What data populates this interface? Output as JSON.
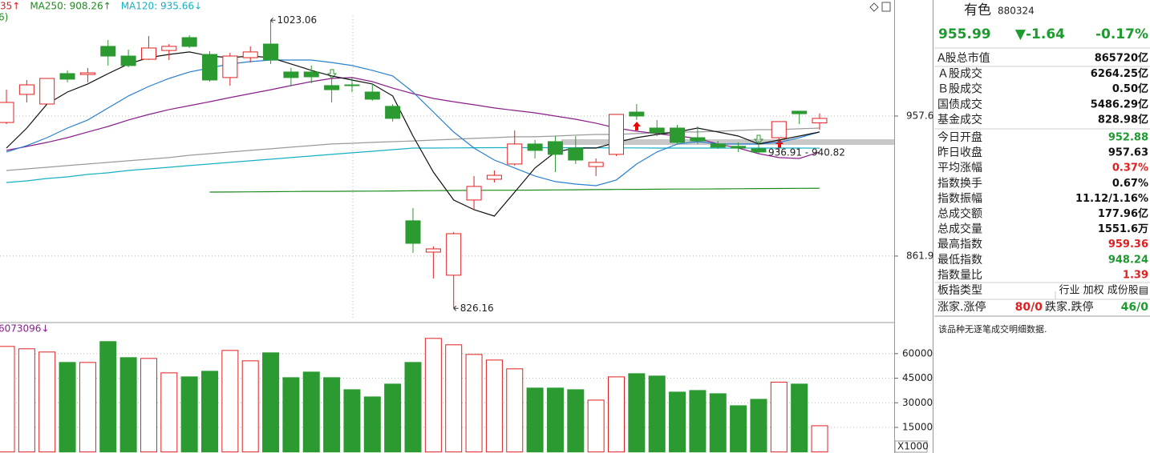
{
  "chart_data": [
    {
      "type": "candlestick",
      "legend": [
        {
          "text": "35↑",
          "color": "#d62020"
        },
        {
          "text": "MA250: 908.26↑",
          "color": "#1e8a1e"
        },
        {
          "text": "MA120: 935.66↓",
          "color": "#16b0c4"
        }
      ],
      "subtitle": "6)",
      "open": [
        953.2,
        972.4,
        965.8,
        986.6,
        986.0,
        1005.2,
        998.6,
        996.4,
        1002.4,
        1011.2,
        999.7,
        983.9,
        997.5,
        1006.8,
        987.7,
        987.7,
        978.4,
        978.9,
        974.0,
        964.2,
        886.0,
        864.6,
        848.8,
        900.2,
        914.4,
        924.8,
        938.5,
        940.1,
        935.7,
        923.1,
        931.4,
        960.3,
        949.4,
        949.4,
        942.8,
        938.5,
        936.9,
        935.2,
        942.8,
        960.9,
        952.88
      ],
      "high": [
        975.6,
        982.2,
        983.3,
        988.8,
        990.4,
        1009.6,
        1003.0,
        1012.3,
        1006.8,
        1012.8,
        1001.9,
        1000.8,
        1005.2,
        1023.06,
        990.4,
        992.1,
        983.9,
        983.9,
        979.5,
        965.8,
        894.7,
        868.5,
        878.3,
        916.6,
        920.4,
        947.8,
        941.2,
        943.9,
        943.9,
        928.6,
        958.7,
        965.8,
        954.9,
        951.6,
        950.5,
        940.6,
        939.6,
        940.6,
        953.8,
        960.9,
        959.36
      ],
      "low": [
        952.1,
        966.9,
        965.8,
        980.6,
        980.6,
        992.1,
        991.0,
        995.9,
        995.9,
        1004.1,
        981.1,
        978.4,
        994.2,
        993.2,
        977.8,
        980.0,
        966.9,
        974.0,
        968.0,
        953.8,
        864.1,
        846.6,
        826.16,
        893.6,
        912.2,
        923.7,
        928.6,
        919.3,
        924.8,
        916.6,
        930.3,
        954.9,
        943.9,
        938.5,
        938.5,
        935.2,
        933.0,
        931.9,
        933.0,
        952.1,
        948.24
      ],
      "close": [
        966.9,
        978.9,
        983.3,
        982.8,
        987.1,
        998.6,
        992.1,
        1004.1,
        1005.2,
        1005.2,
        982.2,
        998.6,
        1001.4,
        995.9,
        983.9,
        984.4,
        975.6,
        978.4,
        969.1,
        956.0,
        870.6,
        866.8,
        877.2,
        909.5,
        917.1,
        938.5,
        934.1,
        931.4,
        927.5,
        925.9,
        958.7,
        957.6,
        946.1,
        939.6,
        940.6,
        936.3,
        935.7,
        933.0,
        953.8,
        959.2,
        955.99
      ],
      "up_color": "#e02020",
      "down_color": "#2b9a31",
      "lines": [
        {
          "color": "#9a9a9a",
          "values": [
            920.4,
            921.5,
            922.6,
            923.7,
            924.8,
            925.9,
            927.0,
            928.1,
            929.2,
            930.8,
            931.9,
            933.0,
            934.1,
            935.2,
            936.3,
            937.4,
            938.5,
            939.0,
            939.6,
            940.1,
            940.6,
            941.2,
            941.7,
            942.3,
            942.8,
            943.4,
            943.4,
            943.9,
            944.5,
            945.0,
            945.0,
            945.6,
            946.1,
            946.7,
            946.7,
            947.2,
            947.8,
            948.3,
            948.3,
            948.9,
            949.4
          ]
        },
        {
          "color": "#16b0c4",
          "values": [
            912.2,
            913.3,
            914.9,
            916.0,
            917.7,
            918.8,
            920.4,
            921.5,
            922.6,
            923.7,
            924.8,
            925.9,
            927.0,
            928.1,
            929.2,
            930.3,
            931.4,
            932.5,
            933.5,
            934.6,
            935.7,
            935.7,
            935.8,
            935.9,
            936.0,
            936.0,
            936.0,
            936.0,
            935.9,
            935.9,
            935.8,
            935.8,
            935.7,
            935.7,
            935.7,
            935.7,
            935.7,
            935.7,
            935.7,
            935.7,
            935.66
          ]
        },
        {
          "color": "#1e8a1e",
          "values": [
            null,
            null,
            null,
            null,
            null,
            null,
            null,
            null,
            null,
            null,
            905.6,
            905.7,
            905.8,
            905.9,
            906.0,
            906.1,
            906.1,
            906.2,
            906.3,
            906.4,
            906.5,
            906.6,
            906.7,
            906.8,
            906.9,
            906.9,
            907.0,
            907.1,
            907.2,
            907.3,
            907.4,
            907.5,
            907.6,
            907.7,
            907.7,
            907.8,
            907.9,
            908.0,
            908.1,
            908.2,
            908.26
          ]
        },
        {
          "color": "#8a1e8a",
          "values": [
            934.1,
            936.8,
            939.6,
            942.8,
            946.7,
            950.5,
            954.9,
            958.7,
            962.0,
            964.7,
            967.4,
            970.2,
            972.9,
            975.6,
            978.4,
            981.1,
            983.3,
            983.9,
            981.1,
            976.7,
            972.9,
            969.6,
            967.4,
            965.3,
            963.1,
            961.4,
            959.8,
            957.6,
            955.4,
            952.7,
            949.4,
            947.2,
            945.6,
            943.9,
            942.3,
            938.5,
            935.7,
            931.9,
            929.2,
            928.6,
            933.0
          ]
        },
        {
          "color": "#2a7fd0",
          "values": [
            933.0,
            937.4,
            942.8,
            949.4,
            954.9,
            963.1,
            971.3,
            977.8,
            983.3,
            987.7,
            990.4,
            993.2,
            994.8,
            995.9,
            995.9,
            995.9,
            994.2,
            992.1,
            988.8,
            985.0,
            974.0,
            960.3,
            946.7,
            935.7,
            927.5,
            922.1,
            916.6,
            912.8,
            911.1,
            910.0,
            913.9,
            924.8,
            933.0,
            938.5,
            940.1,
            938.5,
            938.5,
            938.5,
            939.6,
            942.8,
            946.7
          ]
        },
        {
          "color": "#111111",
          "values": [
            935.7,
            949.4,
            965.8,
            974.0,
            979.5,
            986.6,
            993.2,
            997.5,
            999.7,
            1001.4,
            998.6,
            997.5,
            998.6,
            997.5,
            993.2,
            988.8,
            985.0,
            982.2,
            979.5,
            971.3,
            943.9,
            919.3,
            900.2,
            893.6,
            889.2,
            905.6,
            922.1,
            933.0,
            935.7,
            935.7,
            939.6,
            942.8,
            945.0,
            946.7,
            949.4,
            946.7,
            943.9,
            938.5,
            941.2,
            943.9,
            946.7
          ]
        }
      ],
      "range_label": "936.91 - 940.82",
      "label_extremes": true,
      "ylim": [
        818.1,
        1036.9
      ],
      "yticks": [
        957.6,
        861.9
      ],
      "grid": true
    },
    {
      "type": "volume",
      "legend": "6073096↓",
      "values": [
        64410,
        62950,
        60990,
        54630,
        54630,
        67350,
        57570,
        57080,
        48270,
        45830,
        49250,
        61970,
        55610,
        60500,
        45340,
        48760,
        45340,
        38000,
        33600,
        41430,
        54630,
        69300,
        65390,
        59520,
        56090,
        50720,
        38990,
        38990,
        38000,
        31640,
        45830,
        47780,
        46320,
        36530,
        37510,
        35550,
        28220,
        32130,
        42620,
        41430,
        16000
      ],
      "unit_label": "X1000",
      "ylim": [
        0,
        78000
      ],
      "yticks": [
        60000,
        45000,
        30000,
        15000
      ],
      "grid": true
    }
  ],
  "panel": {
    "name": "有色",
    "code": "880324",
    "price": "955.99",
    "change": "▼-1.64",
    "change_pct": "-0.17%",
    "quote_color": "#1e9b2e",
    "rows": [
      {
        "label": "A股总市值",
        "value": "865720亿",
        "color": "#111"
      },
      {
        "label": "Ａ股成交",
        "value": "6264.25亿",
        "color": "#111"
      },
      {
        "label": "Ｂ股成交",
        "value": "0.50亿",
        "color": "#111"
      },
      {
        "label": "国债成交",
        "value": "5486.29亿",
        "color": "#111"
      },
      {
        "label": "基金成交",
        "value": "828.98亿",
        "color": "#111"
      },
      {
        "label": "今日开盘",
        "value": "952.88",
        "color": "#1e9b2e"
      },
      {
        "label": "昨日收盘",
        "value": "957.63",
        "color": "#111"
      },
      {
        "label": "平均涨幅",
        "value": "0.37%",
        "color": "#e02020"
      },
      {
        "label": "指数换手",
        "value": "0.67%",
        "color": "#111"
      },
      {
        "label": "指数振幅",
        "value": "11.12/1.16%",
        "color": "#111"
      },
      {
        "label": "总成交额",
        "value": "177.96亿",
        "color": "#111"
      },
      {
        "label": "总成交量",
        "value": "1551.6万",
        "color": "#111"
      },
      {
        "label": "最高指数",
        "value": "959.36",
        "color": "#e02020"
      },
      {
        "label": "最低指数",
        "value": "948.24",
        "color": "#1e9b2e"
      },
      {
        "label": "指数量比",
        "value": "1.39",
        "color": "#e02020"
      }
    ],
    "type_row": {
      "label": "板指类型",
      "value": "行业 加权 成份股▤"
    },
    "breadth": {
      "up_label": "涨家.涨停",
      "up_value": "80/0",
      "down_label": "跌家.跌停",
      "down_value": "46/0"
    },
    "note": "该品种无逐笔成交明细数据."
  }
}
